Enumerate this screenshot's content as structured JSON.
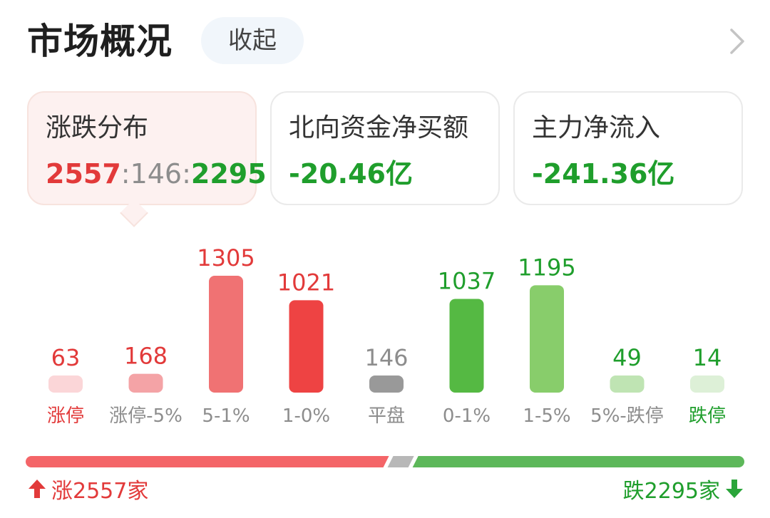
{
  "header": {
    "title": "市场概况",
    "collapse_label": "收起"
  },
  "cards": [
    {
      "label": "涨跌分布",
      "value_up": "2557",
      "sep1": ":",
      "value_flat": "146",
      "sep2": ":",
      "value_down": "2295"
    },
    {
      "label": "北向资金净买额",
      "value": "-20.46亿"
    },
    {
      "label": "主力净流入",
      "value": "-241.36亿"
    }
  ],
  "chart_data": {
    "type": "bar",
    "categories": [
      "涨停",
      "涨停-5%",
      "5-1%",
      "1-0%",
      "平盘",
      "0-1%",
      "1-5%",
      "5%-跌停",
      "跌停"
    ],
    "values": [
      63,
      168,
      1305,
      1021,
      146,
      1037,
      1195,
      49,
      14
    ],
    "bar_colors": [
      "#fbd6d8",
      "#f4a3a6",
      "#f07273",
      "#ee4343",
      "#999999",
      "#55b943",
      "#88cd6b",
      "#bfe4b3",
      "#ddf0d7"
    ],
    "value_label_colors": [
      "#e23a3a",
      "#e23a3a",
      "#e23a3a",
      "#e23a3a",
      "#8d8d8d",
      "#1f9e2c",
      "#1f9e2c",
      "#1f9e2c",
      "#1f9e2c"
    ],
    "category_label_colors": [
      "#e23a3a",
      "#8d8d8d",
      "#8d8d8d",
      "#8d8d8d",
      "#8d8d8d",
      "#8d8d8d",
      "#8d8d8d",
      "#8d8d8d",
      "#1f9e2c"
    ]
  },
  "ratio_bar": {
    "up_count": 2557,
    "flat_count": 146,
    "down_count": 2295,
    "up_color": "#f46568",
    "flat_color": "#b8b8b8",
    "down_color": "#5db85a"
  },
  "footer": {
    "up_label": "涨2557家",
    "down_label": "跌2295家"
  }
}
